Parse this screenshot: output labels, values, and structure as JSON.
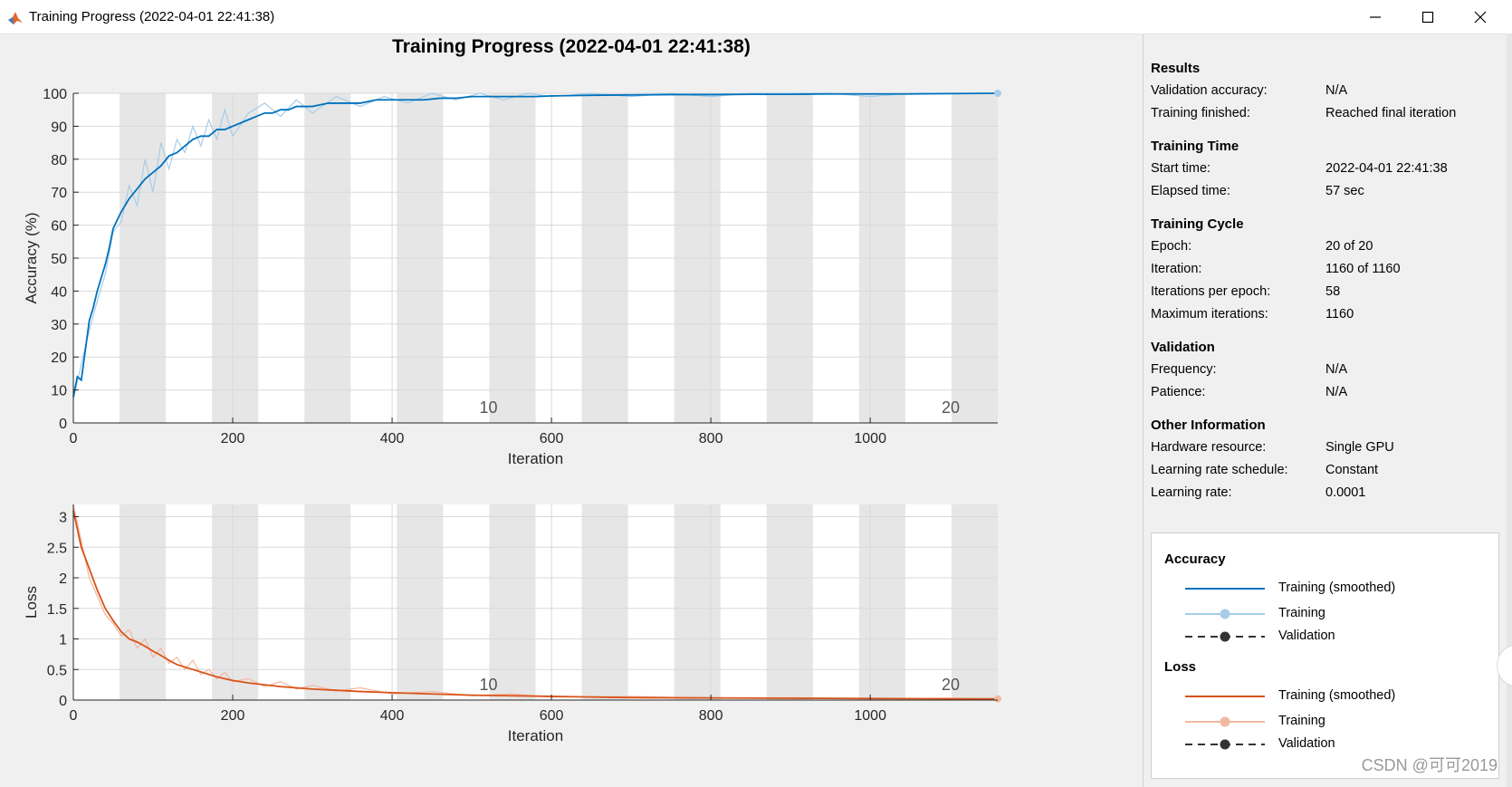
{
  "window": {
    "title": "Training Progress (2022-04-01 22:41:38)",
    "buttons": {
      "minimize": "minimize-icon",
      "maximize": "maximize-icon",
      "close": "close-icon"
    }
  },
  "main_title": "Training Progress (2022-04-01 22:41:38)",
  "info_panel": {
    "sections": [
      {
        "title": "Results",
        "rows": [
          {
            "label": "Validation accuracy:",
            "value": "N/A"
          },
          {
            "label": "Training finished:",
            "value": "Reached final iteration"
          }
        ]
      },
      {
        "title": "Training Time",
        "rows": [
          {
            "label": "Start time:",
            "value": "2022-04-01 22:41:38"
          },
          {
            "label": "Elapsed time:",
            "value": "57 sec"
          }
        ]
      },
      {
        "title": "Training Cycle",
        "rows": [
          {
            "label": "Epoch:",
            "value": "20 of 20"
          },
          {
            "label": "Iteration:",
            "value": "1160 of 1160"
          },
          {
            "label": "Iterations per epoch:",
            "value": "58"
          },
          {
            "label": "Maximum iterations:",
            "value": "1160"
          }
        ]
      },
      {
        "title": "Validation",
        "rows": [
          {
            "label": "Frequency:",
            "value": "N/A"
          },
          {
            "label": "Patience:",
            "value": "N/A"
          }
        ]
      },
      {
        "title": "Other Information",
        "rows": [
          {
            "label": "Hardware resource:",
            "value": "Single GPU"
          },
          {
            "label": "Learning rate schedule:",
            "value": "Constant"
          },
          {
            "label": "Learning rate:",
            "value": "0.0001"
          }
        ]
      }
    ]
  },
  "legend": {
    "groups": [
      {
        "title": "Accuracy",
        "items": [
          {
            "label": "Training (smoothed)",
            "style": "solid",
            "color": "#0072bd",
            "marker": false
          },
          {
            "label": "Training",
            "style": "solid",
            "color": "#a6cde9",
            "marker": true
          },
          {
            "label": "Validation",
            "style": "dashed",
            "color": "#333333",
            "marker": true
          }
        ]
      },
      {
        "title": "Loss",
        "items": [
          {
            "label": "Training (smoothed)",
            "style": "solid",
            "color": "#d95319",
            "marker": false
          },
          {
            "label": "Training",
            "style": "solid",
            "color": "#f2b8a0",
            "marker": true
          },
          {
            "label": "Validation",
            "style": "dashed",
            "color": "#333333",
            "marker": true
          }
        ]
      }
    ]
  },
  "watermark": "CSDN @可可2019",
  "colors": {
    "accuracy_smoothed": "#0072bd",
    "accuracy_raw": "#a6cde9",
    "loss_smoothed": "#d95319",
    "loss_raw": "#f2b8a0",
    "epoch_band": "#e6e6e6"
  },
  "chart_data": [
    {
      "type": "line",
      "title": "",
      "xlabel": "Iteration",
      "ylabel": "Accuracy (%)",
      "xlim": [
        0,
        1160
      ],
      "ylim": [
        0,
        100
      ],
      "xticks": [
        0,
        200,
        400,
        600,
        800,
        1000
      ],
      "yticks": [
        0,
        10,
        20,
        30,
        40,
        50,
        60,
        70,
        80,
        90,
        100
      ],
      "grid": true,
      "epoch_bands": {
        "iterations_per_epoch": 58,
        "shaded": "even_epochs"
      },
      "epoch_labels": [
        {
          "x": 522,
          "label": "10"
        },
        {
          "x": 1102,
          "label": "20"
        }
      ],
      "series": [
        {
          "name": "Training (smoothed)",
          "x": [
            0,
            5,
            10,
            15,
            20,
            25,
            30,
            35,
            40,
            45,
            50,
            60,
            70,
            80,
            90,
            100,
            110,
            120,
            130,
            140,
            150,
            160,
            170,
            180,
            190,
            200,
            210,
            220,
            230,
            240,
            250,
            260,
            270,
            280,
            290,
            300,
            320,
            340,
            360,
            380,
            400,
            420,
            440,
            460,
            480,
            500,
            520,
            540,
            560,
            580,
            600,
            650,
            700,
            750,
            800,
            850,
            900,
            950,
            1000,
            1050,
            1100,
            1160
          ],
          "y": [
            8,
            14,
            13,
            22,
            31,
            35,
            40,
            44,
            48,
            53,
            59,
            64,
            68,
            71,
            74,
            76,
            78,
            81,
            82,
            84,
            86,
            87,
            87,
            89,
            89,
            90,
            91,
            92,
            93,
            94,
            94,
            95,
            95,
            96,
            96,
            96,
            97,
            97,
            97,
            98,
            98,
            98,
            98,
            98.5,
            98.5,
            99,
            99,
            99,
            99,
            99,
            99.2,
            99.4,
            99.5,
            99.6,
            99.6,
            99.7,
            99.7,
            99.8,
            99.8,
            99.8,
            99.9,
            100
          ]
        },
        {
          "name": "Training",
          "x": [
            0,
            10,
            20,
            30,
            40,
            50,
            60,
            70,
            80,
            90,
            100,
            110,
            120,
            130,
            140,
            150,
            160,
            170,
            180,
            190,
            200,
            220,
            240,
            260,
            280,
            300,
            330,
            360,
            390,
            420,
            450,
            480,
            510,
            540,
            570,
            600,
            650,
            700,
            750,
            800,
            850,
            900,
            950,
            1000,
            1050,
            1100,
            1160
          ],
          "y": [
            7,
            18,
            28,
            37,
            45,
            58,
            61,
            72,
            66,
            80,
            70,
            85,
            77,
            86,
            82,
            90,
            84,
            92,
            86,
            95,
            87,
            94,
            97,
            93,
            98,
            94,
            99,
            96,
            99,
            97,
            100,
            98,
            100,
            98,
            100,
            99,
            100,
            99,
            100,
            99,
            100,
            100,
            100,
            99,
            100,
            100,
            100
          ]
        }
      ]
    },
    {
      "type": "line",
      "title": "",
      "xlabel": "Iteration",
      "ylabel": "Loss",
      "xlim": [
        0,
        1160
      ],
      "ylim": [
        0,
        3.2
      ],
      "xticks": [
        0,
        200,
        400,
        600,
        800,
        1000
      ],
      "yticks": [
        0,
        0.5,
        1,
        1.5,
        2,
        2.5,
        3
      ],
      "grid": true,
      "epoch_bands": {
        "iterations_per_epoch": 58,
        "shaded": "even_epochs"
      },
      "epoch_labels": [
        {
          "x": 522,
          "label": "10"
        },
        {
          "x": 1102,
          "label": "20"
        }
      ],
      "series": [
        {
          "name": "Training (smoothed)",
          "x": [
            0,
            5,
            10,
            20,
            30,
            40,
            50,
            60,
            70,
            80,
            90,
            100,
            110,
            120,
            130,
            140,
            150,
            160,
            180,
            200,
            220,
            240,
            260,
            280,
            300,
            330,
            360,
            400,
            450,
            500,
            550,
            600,
            650,
            700,
            800,
            900,
            1000,
            1100,
            1160
          ],
          "y": [
            3.1,
            2.8,
            2.5,
            2.15,
            1.8,
            1.5,
            1.3,
            1.12,
            1.0,
            0.95,
            0.88,
            0.8,
            0.73,
            0.65,
            0.58,
            0.54,
            0.5,
            0.46,
            0.38,
            0.32,
            0.28,
            0.25,
            0.22,
            0.2,
            0.18,
            0.16,
            0.14,
            0.12,
            0.1,
            0.08,
            0.07,
            0.06,
            0.05,
            0.04,
            0.035,
            0.03,
            0.025,
            0.02,
            0.02
          ]
        },
        {
          "name": "Training",
          "x": [
            0,
            10,
            20,
            30,
            40,
            50,
            60,
            70,
            80,
            90,
            100,
            110,
            120,
            130,
            140,
            150,
            160,
            170,
            180,
            190,
            200,
            220,
            240,
            260,
            280,
            300,
            330,
            360,
            400,
            450,
            500,
            550,
            600,
            700,
            800,
            900,
            1000,
            1100,
            1160
          ],
          "y": [
            3.2,
            2.6,
            2.0,
            1.7,
            1.4,
            1.25,
            1.05,
            1.15,
            0.85,
            1.0,
            0.7,
            0.85,
            0.6,
            0.7,
            0.5,
            0.65,
            0.42,
            0.5,
            0.35,
            0.45,
            0.3,
            0.35,
            0.22,
            0.3,
            0.18,
            0.24,
            0.15,
            0.2,
            0.1,
            0.14,
            0.07,
            0.1,
            0.05,
            0.06,
            0.03,
            0.04,
            0.02,
            0.03,
            0.02
          ]
        }
      ]
    }
  ]
}
